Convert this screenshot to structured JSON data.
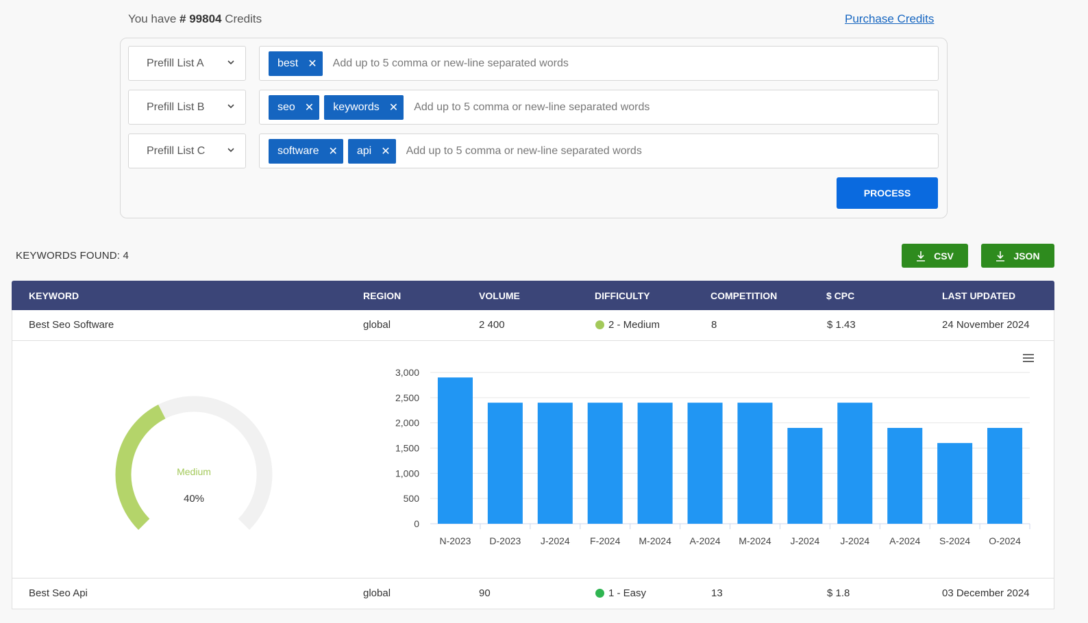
{
  "header": {
    "credits_prefix": "You have",
    "credits_hash": "#",
    "credits_count": "99804",
    "credits_suffix": "Credits",
    "purchase_link": "Purchase Credits"
  },
  "prefill_lists": [
    {
      "label": "Prefill List A",
      "tags": [
        "best"
      ],
      "placeholder": "Add up to 5 comma or new-line separated words"
    },
    {
      "label": "Prefill List B",
      "tags": [
        "seo",
        "keywords"
      ],
      "placeholder": "Add up to 5 comma or new-line separated words"
    },
    {
      "label": "Prefill List C",
      "tags": [
        "software",
        "api"
      ],
      "placeholder": "Add up to 5 comma or new-line separated words"
    }
  ],
  "process_button": "PROCESS",
  "results": {
    "found_label": "KEYWORDS FOUND: 4",
    "csv_label": "CSV",
    "json_label": "JSON"
  },
  "table": {
    "headers": [
      "KEYWORD",
      "REGION",
      "VOLUME",
      "DIFFICULTY",
      "COMPETITION",
      "$ CPC",
      "LAST UPDATED"
    ],
    "rows": [
      {
        "keyword": "Best Seo Software",
        "region": "global",
        "volume": "2 400",
        "difficulty": "2 - Medium",
        "difficulty_color": "#a3c95a",
        "competition": "8",
        "cpc": "$ 1.43",
        "updated": "24 November 2024"
      },
      {
        "keyword": "Best Seo Api",
        "region": "global",
        "volume": "90",
        "difficulty": "1 - Easy",
        "difficulty_color": "#2fb551",
        "competition": "13",
        "cpc": "$ 1.8",
        "updated": "03 December 2024"
      }
    ]
  },
  "gauge": {
    "label": "Medium",
    "value_text": "40%",
    "value": 0.4,
    "color": "#b4d46a",
    "track_color": "#f1f1f1"
  },
  "icons": {
    "menu": "hamburger-menu-icon",
    "download": "download-icon",
    "chevron": "chevron-down-icon",
    "remove": "close-icon"
  },
  "colors": {
    "header_bg": "#3b4578",
    "accent": "#0a6adf",
    "tag": "#1565c0",
    "download": "#2e8b1e",
    "bar": "#2196f3"
  },
  "chart_data": {
    "type": "bar",
    "categories": [
      "N-2023",
      "D-2023",
      "J-2024",
      "F-2024",
      "M-2024",
      "A-2024",
      "M-2024",
      "J-2024",
      "J-2024",
      "A-2024",
      "S-2024",
      "O-2024"
    ],
    "values": [
      2900,
      2400,
      2400,
      2400,
      2400,
      2400,
      2400,
      1900,
      2400,
      1900,
      1600,
      1900
    ],
    "ylim": [
      0,
      3000
    ],
    "yticks": [
      "0",
      "500",
      "1,000",
      "1,500",
      "2,000",
      "2,500",
      "3,000"
    ],
    "title": "",
    "xlabel": "",
    "ylabel": "",
    "grid": true,
    "color": "#2196f3"
  }
}
